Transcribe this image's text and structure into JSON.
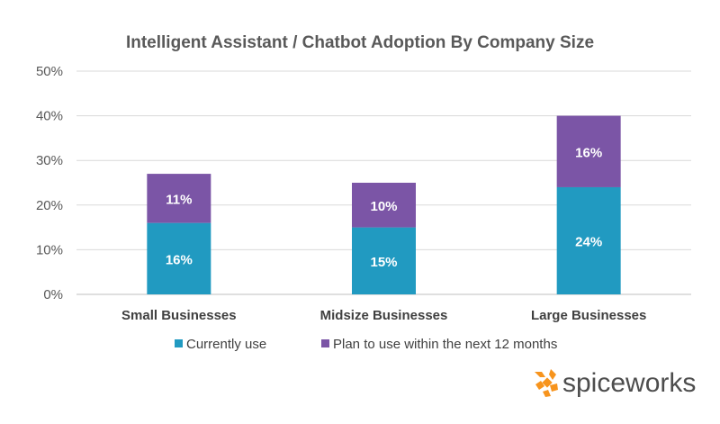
{
  "chart_data": {
    "type": "bar",
    "stacked": true,
    "title": "Intelligent Assistant / Chatbot Adoption By Company Size",
    "categories": [
      "Small Businesses",
      "Midsize Businesses",
      "Large Businesses"
    ],
    "series": [
      {
        "name": "Currently use",
        "values": [
          16,
          15,
          24
        ],
        "labels": [
          "16%",
          "15%",
          "24%"
        ],
        "color": "#219ac1"
      },
      {
        "name": "Plan to use within the next 12 months",
        "values": [
          11,
          10,
          16
        ],
        "labels": [
          "11%",
          "10%",
          "16%"
        ],
        "color": "#7b55a6"
      }
    ],
    "ylim": [
      0,
      50
    ],
    "yticks": [
      0,
      10,
      20,
      30,
      40,
      50
    ],
    "ytick_labels": [
      "0%",
      "10%",
      "20%",
      "30%",
      "40%",
      "50%"
    ],
    "grid": true,
    "legend_position": "bottom"
  },
  "logo": {
    "text": "spiceworks",
    "icon": "spiceworks-logo-icon",
    "color": "#f7941d"
  }
}
